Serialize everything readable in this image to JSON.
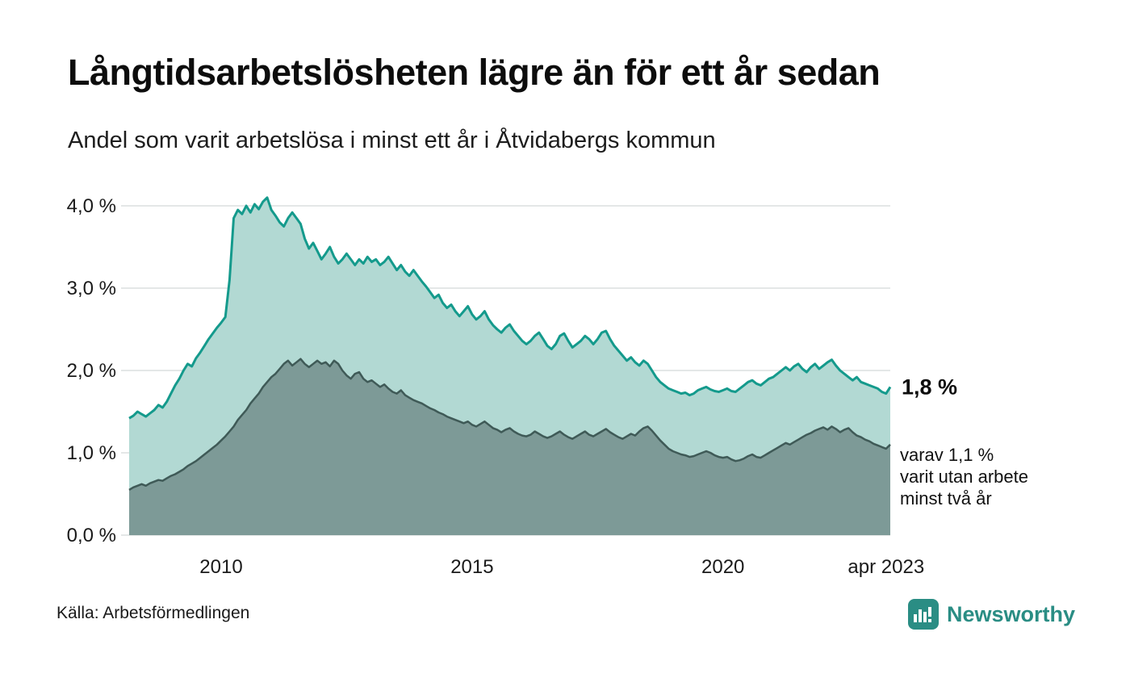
{
  "header": {
    "title": "Långtidsarbetslösheten lägre än för ett år sedan",
    "subtitle": "Andel som varit arbetslösa i minst ett år i Åtvidabergs kommun"
  },
  "footer": {
    "source": "Källa: Arbetsförmedlingen",
    "logo_text": "Newsworthy"
  },
  "colors": {
    "line_total": "#149a8c",
    "fill_total": "#b2d9d3",
    "line_two_years": "#3f5a57",
    "fill_two_years": "#7d9a97",
    "grid": "#dcdfdf",
    "brand_teal": "#2a8d84"
  },
  "chart_data": {
    "type": "area",
    "title": "Långtidsarbetslösheten lägre än för ett år sedan",
    "subtitle": "Andel som varit arbetslösa i minst ett år i Åtvidabergs kommun",
    "x_domain": [
      2008.1667,
      2023.3333
    ],
    "ylim": [
      0,
      4.35
    ],
    "grid": true,
    "x_ticks": [
      {
        "t": 2010,
        "label": "2010"
      },
      {
        "t": 2015,
        "label": "2015"
      },
      {
        "t": 2020,
        "label": "2020"
      },
      {
        "t": 2023.25,
        "label": "apr 2023"
      }
    ],
    "y_ticks": [
      {
        "v": 0,
        "label": "0,0 %"
      },
      {
        "v": 1,
        "label": "1,0 %"
      },
      {
        "v": 2,
        "label": "2,0 %"
      },
      {
        "v": 3,
        "label": "3,0 %"
      },
      {
        "v": 4,
        "label": "4,0 %"
      }
    ],
    "series": [
      {
        "name": "Arbetslösa minst ett år",
        "color": "#149a8c",
        "fill": "#b2d9d3",
        "values": [
          1.42,
          1.45,
          1.5,
          1.47,
          1.44,
          1.48,
          1.52,
          1.58,
          1.55,
          1.62,
          1.72,
          1.82,
          1.9,
          2.0,
          2.08,
          2.05,
          2.15,
          2.22,
          2.3,
          2.38,
          2.45,
          2.52,
          2.58,
          2.65,
          3.1,
          3.85,
          3.95,
          3.9,
          4.0,
          3.92,
          4.02,
          3.96,
          4.05,
          4.1,
          3.95,
          3.88,
          3.8,
          3.75,
          3.85,
          3.92,
          3.85,
          3.78,
          3.6,
          3.48,
          3.55,
          3.45,
          3.35,
          3.42,
          3.5,
          3.38,
          3.3,
          3.35,
          3.42,
          3.35,
          3.28,
          3.35,
          3.3,
          3.38,
          3.32,
          3.35,
          3.28,
          3.32,
          3.38,
          3.3,
          3.22,
          3.28,
          3.2,
          3.15,
          3.22,
          3.15,
          3.08,
          3.02,
          2.95,
          2.88,
          2.92,
          2.82,
          2.76,
          2.8,
          2.72,
          2.66,
          2.72,
          2.78,
          2.68,
          2.62,
          2.66,
          2.72,
          2.62,
          2.55,
          2.5,
          2.46,
          2.52,
          2.56,
          2.48,
          2.42,
          2.36,
          2.32,
          2.36,
          2.42,
          2.46,
          2.38,
          2.3,
          2.26,
          2.32,
          2.42,
          2.45,
          2.36,
          2.28,
          2.32,
          2.36,
          2.42,
          2.38,
          2.32,
          2.38,
          2.46,
          2.48,
          2.38,
          2.3,
          2.24,
          2.18,
          2.12,
          2.16,
          2.1,
          2.06,
          2.12,
          2.08,
          2.0,
          1.92,
          1.86,
          1.82,
          1.78,
          1.76,
          1.74,
          1.72,
          1.73,
          1.7,
          1.72,
          1.76,
          1.78,
          1.8,
          1.77,
          1.75,
          1.74,
          1.76,
          1.78,
          1.75,
          1.74,
          1.78,
          1.82,
          1.86,
          1.88,
          1.84,
          1.82,
          1.86,
          1.9,
          1.92,
          1.96,
          2.0,
          2.04,
          2.0,
          2.05,
          2.08,
          2.02,
          1.98,
          2.04,
          2.08,
          2.02,
          2.06,
          2.1,
          2.13,
          2.06,
          2.0,
          1.96,
          1.92,
          1.88,
          1.92,
          1.86,
          1.84,
          1.82,
          1.8,
          1.78,
          1.74,
          1.72,
          1.8
        ]
      },
      {
        "name": "Arbetslösa minst två år",
        "color": "#3f5a57",
        "fill": "#7d9a97",
        "values": [
          0.55,
          0.58,
          0.6,
          0.62,
          0.6,
          0.63,
          0.65,
          0.67,
          0.66,
          0.69,
          0.72,
          0.74,
          0.77,
          0.8,
          0.84,
          0.87,
          0.9,
          0.94,
          0.98,
          1.02,
          1.06,
          1.1,
          1.15,
          1.2,
          1.26,
          1.32,
          1.4,
          1.46,
          1.52,
          1.6,
          1.66,
          1.72,
          1.8,
          1.86,
          1.92,
          1.96,
          2.02,
          2.08,
          2.12,
          2.06,
          2.1,
          2.14,
          2.08,
          2.04,
          2.08,
          2.12,
          2.08,
          2.1,
          2.05,
          2.12,
          2.08,
          2.0,
          1.94,
          1.9,
          1.96,
          1.98,
          1.9,
          1.86,
          1.88,
          1.84,
          1.8,
          1.83,
          1.78,
          1.74,
          1.72,
          1.76,
          1.7,
          1.67,
          1.64,
          1.62,
          1.6,
          1.57,
          1.54,
          1.52,
          1.49,
          1.47,
          1.44,
          1.42,
          1.4,
          1.38,
          1.36,
          1.38,
          1.34,
          1.32,
          1.35,
          1.38,
          1.34,
          1.3,
          1.28,
          1.25,
          1.28,
          1.3,
          1.26,
          1.23,
          1.21,
          1.2,
          1.22,
          1.26,
          1.23,
          1.2,
          1.18,
          1.2,
          1.23,
          1.26,
          1.22,
          1.19,
          1.17,
          1.2,
          1.23,
          1.26,
          1.22,
          1.2,
          1.23,
          1.26,
          1.29,
          1.25,
          1.22,
          1.19,
          1.17,
          1.2,
          1.23,
          1.21,
          1.26,
          1.3,
          1.32,
          1.27,
          1.21,
          1.15,
          1.1,
          1.05,
          1.02,
          1.0,
          0.98,
          0.97,
          0.95,
          0.96,
          0.98,
          1.0,
          1.02,
          1.0,
          0.97,
          0.95,
          0.94,
          0.95,
          0.92,
          0.9,
          0.91,
          0.93,
          0.96,
          0.98,
          0.95,
          0.94,
          0.97,
          1.0,
          1.03,
          1.06,
          1.09,
          1.12,
          1.1,
          1.13,
          1.16,
          1.19,
          1.22,
          1.24,
          1.27,
          1.29,
          1.31,
          1.28,
          1.32,
          1.29,
          1.25,
          1.28,
          1.3,
          1.25,
          1.21,
          1.19,
          1.16,
          1.14,
          1.11,
          1.09,
          1.07,
          1.05,
          1.1
        ]
      }
    ],
    "annotations": {
      "end_value": {
        "text": "1,8 %",
        "value": 1.8
      },
      "sub_note": {
        "lines": [
          "varav 1,1 %",
          "varit utan arbete",
          "minst två år"
        ],
        "value": 1.1
      }
    }
  }
}
